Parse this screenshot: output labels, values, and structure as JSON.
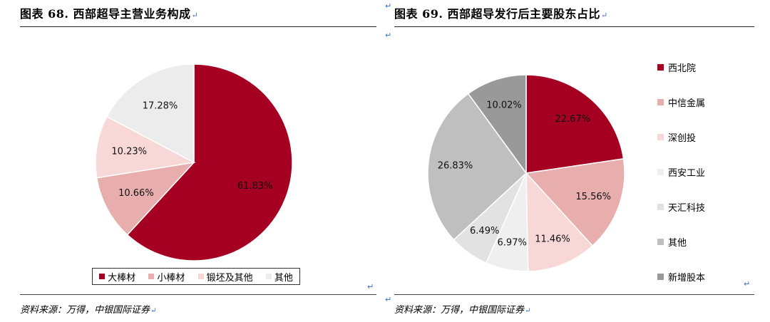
{
  "left": {
    "title": "图表 68. 西部超导主营业务构成",
    "source": "资料来源：万得，中银国际证券"
  },
  "right": {
    "title": "图表 69. 西部超导发行后主要股东占比",
    "source": "资料来源：万得，中银国际证券"
  },
  "return_mark": "↵",
  "chart_data": [
    {
      "type": "pie",
      "title": "图表 68. 西部超导主营业务构成",
      "legend_position": "bottom",
      "slices": [
        {
          "label": "大棒材",
          "value": 61.83,
          "display": "61.83%",
          "color": "#a50021"
        },
        {
          "label": "小棒材",
          "value": 10.66,
          "display": "10.66%",
          "color": "#e8aeae"
        },
        {
          "label": "锻坯及其他",
          "value": 10.23,
          "display": "10.23%",
          "color": "#f8d7d7"
        },
        {
          "label": "其他",
          "value": 17.28,
          "display": "17.28%",
          "color": "#ececec"
        }
      ]
    },
    {
      "type": "pie",
      "title": "图表 69. 西部超导发行后主要股东占比",
      "legend_position": "right",
      "slices": [
        {
          "label": "西北院",
          "value": 22.67,
          "display": "22.67%",
          "color": "#a50021"
        },
        {
          "label": "中信金属",
          "value": 15.56,
          "display": "15.56%",
          "color": "#e8aeae"
        },
        {
          "label": "深创投",
          "value": 11.46,
          "display": "11.46%",
          "color": "#f8d7d7"
        },
        {
          "label": "西安工业",
          "value": 6.97,
          "display": "6.97%",
          "color": "#efefef"
        },
        {
          "label": "天汇科技",
          "value": 6.49,
          "display": "6.49%",
          "color": "#e2e2e2"
        },
        {
          "label": "其他",
          "value": 26.83,
          "display": "26.83%",
          "color": "#bfbfbf"
        },
        {
          "label": "新增股本",
          "value": 10.02,
          "display": "10.02%",
          "color": "#999999"
        }
      ]
    }
  ]
}
